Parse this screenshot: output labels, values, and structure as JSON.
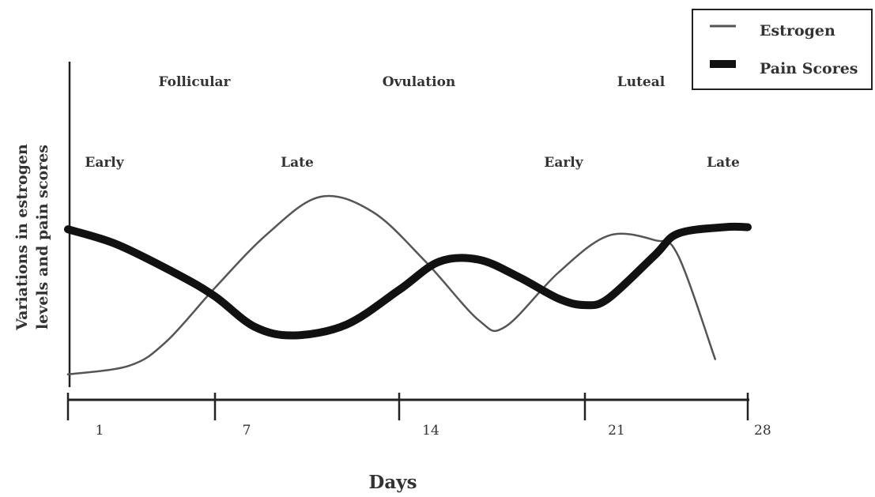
{
  "chart_data": {
    "type": "line",
    "title": "",
    "xlabel": "Days",
    "ylabel_lines": [
      "Variations in estrogen",
      "levels and pain scores"
    ],
    "x_ticks": [
      1,
      7,
      14,
      21,
      28
    ],
    "xlim": [
      1,
      28
    ],
    "ylim": [
      0,
      10
    ],
    "phase_labels": [
      "Follicular",
      "Ovulation",
      "Luteal"
    ],
    "subphase_labels": [
      "Early",
      "Late",
      "Early",
      "Late"
    ],
    "legend": {
      "position": "top-right"
    },
    "series": [
      {
        "name": "Estrogen",
        "color": "#555555",
        "style": "thin",
        "points": [
          [
            1,
            0.3
          ],
          [
            3.5,
            0.7
          ],
          [
            5,
            1.8
          ],
          [
            7,
            4.3
          ],
          [
            9,
            6.8
          ],
          [
            11,
            8.5
          ],
          [
            13,
            7.8
          ],
          [
            15,
            5.5
          ],
          [
            17,
            2.8
          ],
          [
            18,
            2.5
          ],
          [
            20,
            5.0
          ],
          [
            22,
            6.7
          ],
          [
            24,
            6.5
          ],
          [
            25,
            5.8
          ],
          [
            26.6,
            1.0
          ]
        ]
      },
      {
        "name": "Pain Scores",
        "color": "#111111",
        "style": "thick",
        "points": [
          [
            1,
            7.0
          ],
          [
            3,
            6.3
          ],
          [
            5.5,
            4.9
          ],
          [
            7,
            3.9
          ],
          [
            8.5,
            2.5
          ],
          [
            10,
            2.1
          ],
          [
            12,
            2.6
          ],
          [
            14,
            4.2
          ],
          [
            15.5,
            5.5
          ],
          [
            17,
            5.6
          ],
          [
            18.5,
            4.8
          ],
          [
            20,
            3.8
          ],
          [
            21,
            3.5
          ],
          [
            22,
            3.8
          ],
          [
            24,
            5.8
          ],
          [
            25,
            6.8
          ],
          [
            27,
            7.1
          ],
          [
            28,
            7.1
          ]
        ]
      }
    ]
  }
}
